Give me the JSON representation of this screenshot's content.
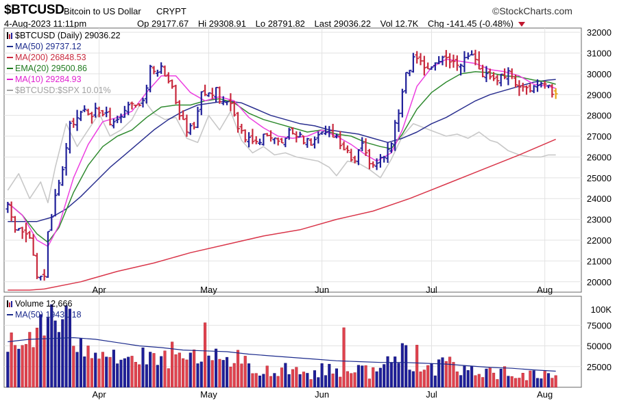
{
  "header": {
    "symbol": "$BTCUSD",
    "name": "Bitcoin to US Dollar",
    "exchange": "CRYPT",
    "brand": "©StockCharts.com",
    "datetime": "4-Aug-2023 11:11pm",
    "open_label": "Op",
    "open": "29177.67",
    "high_label": "Hi",
    "high": "29308.91",
    "low_label": "Lo",
    "low": "28791.82",
    "last_label": "Last",
    "last": "29036.22",
    "vol_label": "Vol",
    "vol": "12.7K",
    "chg_label": "Chg",
    "chg": "-141.45 (-0.48%)"
  },
  "legend": [
    {
      "text": "$BTCUSD (Daily) 29036.22",
      "color": "#000000",
      "marker": "bar"
    },
    {
      "text": "MA(50) 29737.12",
      "color": "#1b2a8c",
      "marker": "line"
    },
    {
      "text": "MA(200) 26848.53",
      "color": "#c8283c",
      "marker": "line"
    },
    {
      "text": "EMA(20) 29500.86",
      "color": "#1f7a1f",
      "marker": "line"
    },
    {
      "text": "MA(10) 29284.93",
      "color": "#e020d0",
      "marker": "line"
    },
    {
      "text": "$BTCUSD:$SPX 10.01%",
      "color": "#a0a0a0",
      "marker": "line"
    }
  ],
  "volume_legend": [
    {
      "text": "Volume 12,666",
      "color": "#000000",
      "marker": "bar"
    },
    {
      "text": "MA(50) 19431.18",
      "color": "#1b2a8c",
      "marker": "line"
    }
  ],
  "chart_data": {
    "type": "candlestick",
    "price_axis": {
      "ticks": [
        20000,
        21000,
        22000,
        23000,
        24000,
        25000,
        26000,
        27000,
        28000,
        29000,
        30000,
        31000,
        32000
      ],
      "range": [
        19500,
        32200
      ]
    },
    "volume_axis": {
      "ticks": [
        25000,
        50000,
        75000
      ],
      "top_label": "100K",
      "range": [
        0,
        110000
      ]
    },
    "month_labels": [
      {
        "label": "Apr",
        "day": 25
      },
      {
        "label": "May",
        "day": 55
      },
      {
        "label": "Jun",
        "day": 86
      },
      {
        "label": "Jul",
        "day": 116
      },
      {
        "label": "Aug",
        "day": 147
      }
    ],
    "day_count": 156,
    "x_range": [
      -1,
      157
    ],
    "ohlc_key": [
      [
        0,
        23500
      ],
      [
        2,
        22600
      ],
      [
        4,
        22400
      ],
      [
        6,
        22200
      ],
      [
        8,
        20100
      ],
      [
        10,
        20300
      ],
      [
        11,
        22300
      ],
      [
        13,
        24000
      ],
      [
        15,
        25400
      ],
      [
        17,
        27400
      ],
      [
        19,
        28000
      ],
      [
        21,
        28200
      ],
      [
        23,
        28100
      ],
      [
        25,
        28300
      ],
      [
        27,
        27900
      ],
      [
        29,
        27700
      ],
      [
        31,
        27900
      ],
      [
        33,
        28400
      ],
      [
        35,
        28300
      ],
      [
        37,
        28700
      ],
      [
        39,
        30200
      ],
      [
        41,
        30300
      ],
      [
        43,
        30100
      ],
      [
        45,
        29500
      ],
      [
        47,
        28200
      ],
      [
        49,
        27400
      ],
      [
        51,
        27500
      ],
      [
        53,
        29200
      ],
      [
        55,
        28900
      ],
      [
        57,
        29100
      ],
      [
        59,
        28500
      ],
      [
        61,
        28600
      ],
      [
        63,
        27600
      ],
      [
        65,
        27000
      ],
      [
        67,
        26900
      ],
      [
        69,
        26800
      ],
      [
        71,
        27200
      ],
      [
        73,
        26700
      ],
      [
        75,
        26900
      ],
      [
        77,
        27200
      ],
      [
        79,
        27100
      ],
      [
        81,
        26900
      ],
      [
        83,
        26800
      ],
      [
        85,
        27200
      ],
      [
        87,
        27200
      ],
      [
        89,
        27000
      ],
      [
        91,
        26800
      ],
      [
        93,
        26300
      ],
      [
        95,
        25800
      ],
      [
        97,
        26500
      ],
      [
        99,
        25900
      ],
      [
        101,
        25600
      ],
      [
        103,
        26200
      ],
      [
        105,
        26700
      ],
      [
        107,
        28300
      ],
      [
        109,
        30100
      ],
      [
        111,
        30600
      ],
      [
        113,
        30400
      ],
      [
        115,
        30300
      ],
      [
        117,
        30500
      ],
      [
        119,
        30800
      ],
      [
        121,
        30600
      ],
      [
        123,
        30300
      ],
      [
        125,
        30600
      ],
      [
        127,
        30900
      ],
      [
        129,
        30200
      ],
      [
        131,
        30000
      ],
      [
        133,
        29800
      ],
      [
        135,
        29800
      ],
      [
        137,
        29900
      ],
      [
        139,
        29700
      ],
      [
        141,
        29400
      ],
      [
        143,
        29300
      ],
      [
        145,
        29200
      ],
      [
        147,
        29400
      ],
      [
        149,
        29200
      ],
      [
        150,
        29050
      ]
    ],
    "ma50": [
      [
        0,
        22900
      ],
      [
        4,
        22900
      ],
      [
        8,
        22900
      ],
      [
        12,
        23100
      ],
      [
        16,
        23500
      ],
      [
        20,
        24100
      ],
      [
        24,
        24800
      ],
      [
        28,
        25500
      ],
      [
        32,
        26100
      ],
      [
        36,
        26700
      ],
      [
        40,
        27300
      ],
      [
        44,
        27800
      ],
      [
        48,
        28200
      ],
      [
        52,
        28500
      ],
      [
        56,
        28600
      ],
      [
        60,
        28700
      ],
      [
        64,
        28600
      ],
      [
        68,
        28300
      ],
      [
        72,
        28000
      ],
      [
        76,
        27800
      ],
      [
        80,
        27600
      ],
      [
        84,
        27500
      ],
      [
        88,
        27300
      ],
      [
        92,
        27200
      ],
      [
        96,
        27100
      ],
      [
        100,
        26900
      ],
      [
        104,
        26700
      ],
      [
        108,
        26900
      ],
      [
        112,
        27200
      ],
      [
        116,
        27600
      ],
      [
        120,
        27900
      ],
      [
        124,
        28300
      ],
      [
        128,
        28700
      ],
      [
        132,
        29000
      ],
      [
        136,
        29200
      ],
      [
        140,
        29400
      ],
      [
        144,
        29600
      ],
      [
        148,
        29700
      ],
      [
        150,
        29730
      ]
    ],
    "ma200": [
      [
        0,
        19600
      ],
      [
        6,
        19600
      ],
      [
        10,
        19650
      ],
      [
        20,
        20000
      ],
      [
        30,
        20500
      ],
      [
        40,
        20900
      ],
      [
        50,
        21400
      ],
      [
        60,
        21800
      ],
      [
        70,
        22200
      ],
      [
        80,
        22500
      ],
      [
        90,
        23000
      ],
      [
        100,
        23400
      ],
      [
        110,
        24000
      ],
      [
        120,
        24700
      ],
      [
        130,
        25400
      ],
      [
        140,
        26100
      ],
      [
        150,
        26850
      ]
    ],
    "ema20": [
      [
        0,
        23800
      ],
      [
        4,
        23200
      ],
      [
        8,
        22300
      ],
      [
        11,
        21900
      ],
      [
        14,
        22600
      ],
      [
        18,
        24300
      ],
      [
        22,
        25600
      ],
      [
        26,
        26500
      ],
      [
        30,
        27000
      ],
      [
        34,
        27300
      ],
      [
        38,
        27900
      ],
      [
        42,
        28400
      ],
      [
        46,
        28500
      ],
      [
        50,
        28500
      ],
      [
        54,
        28700
      ],
      [
        58,
        28800
      ],
      [
        62,
        28600
      ],
      [
        66,
        28100
      ],
      [
        70,
        27800
      ],
      [
        74,
        27600
      ],
      [
        78,
        27400
      ],
      [
        82,
        27200
      ],
      [
        86,
        27300
      ],
      [
        90,
        27100
      ],
      [
        94,
        27000
      ],
      [
        98,
        26700
      ],
      [
        102,
        26500
      ],
      [
        105,
        26400
      ],
      [
        108,
        27100
      ],
      [
        112,
        28300
      ],
      [
        116,
        29100
      ],
      [
        120,
        29600
      ],
      [
        124,
        30000
      ],
      [
        128,
        30100
      ],
      [
        132,
        30050
      ],
      [
        136,
        29900
      ],
      [
        140,
        29850
      ],
      [
        144,
        29700
      ],
      [
        148,
        29600
      ],
      [
        150,
        29500
      ]
    ],
    "ma10": [
      [
        0,
        23800
      ],
      [
        4,
        23200
      ],
      [
        8,
        22000
      ],
      [
        11,
        21700
      ],
      [
        14,
        22700
      ],
      [
        18,
        25000
      ],
      [
        22,
        26600
      ],
      [
        26,
        27700
      ],
      [
        30,
        27900
      ],
      [
        34,
        28200
      ],
      [
        38,
        29100
      ],
      [
        42,
        29900
      ],
      [
        46,
        29900
      ],
      [
        50,
        29100
      ],
      [
        54,
        28700
      ],
      [
        58,
        28900
      ],
      [
        62,
        28700
      ],
      [
        66,
        27900
      ],
      [
        70,
        27400
      ],
      [
        74,
        27000
      ],
      [
        78,
        26900
      ],
      [
        82,
        27000
      ],
      [
        86,
        27300
      ],
      [
        90,
        27000
      ],
      [
        94,
        26600
      ],
      [
        98,
        26100
      ],
      [
        101,
        25800
      ],
      [
        105,
        26200
      ],
      [
        108,
        27300
      ],
      [
        112,
        29400
      ],
      [
        116,
        30300
      ],
      [
        120,
        30700
      ],
      [
        124,
        30600
      ],
      [
        128,
        30500
      ],
      [
        132,
        30200
      ],
      [
        136,
        30100
      ],
      [
        140,
        29900
      ],
      [
        144,
        29500
      ],
      [
        148,
        29400
      ],
      [
        150,
        29300
      ]
    ],
    "ratio": [
      [
        0,
        24400
      ],
      [
        3,
        25200
      ],
      [
        6,
        24000
      ],
      [
        9,
        24800
      ],
      [
        11,
        23800
      ],
      [
        13,
        25500
      ],
      [
        16,
        27600
      ],
      [
        19,
        26500
      ],
      [
        22,
        27300
      ],
      [
        25,
        28100
      ],
      [
        28,
        27000
      ],
      [
        31,
        27300
      ],
      [
        34,
        27800
      ],
      [
        37,
        28800
      ],
      [
        40,
        28100
      ],
      [
        43,
        27800
      ],
      [
        46,
        27900
      ],
      [
        49,
        26900
      ],
      [
        52,
        26700
      ],
      [
        55,
        28000
      ],
      [
        58,
        27300
      ],
      [
        61,
        28200
      ],
      [
        64,
        26800
      ],
      [
        67,
        26200
      ],
      [
        70,
        26500
      ],
      [
        73,
        26100
      ],
      [
        76,
        26200
      ],
      [
        79,
        26000
      ],
      [
        82,
        25900
      ],
      [
        85,
        25800
      ],
      [
        88,
        25500
      ],
      [
        90,
        25100
      ],
      [
        93,
        25800
      ],
      [
        96,
        25700
      ],
      [
        99,
        25400
      ],
      [
        102,
        25000
      ],
      [
        105,
        25900
      ],
      [
        108,
        27000
      ],
      [
        111,
        27600
      ],
      [
        114,
        27400
      ],
      [
        117,
        27200
      ],
      [
        120,
        27000
      ],
      [
        123,
        27100
      ],
      [
        126,
        26900
      ],
      [
        129,
        27200
      ],
      [
        132,
        26800
      ],
      [
        134,
        26700
      ],
      [
        137,
        26300
      ],
      [
        140,
        26100
      ],
      [
        143,
        26000
      ],
      [
        146,
        26000
      ],
      [
        148,
        26100
      ],
      [
        150,
        26100
      ]
    ],
    "volume_key": [
      [
        0,
        52000
      ],
      [
        3,
        44000
      ],
      [
        6,
        60000
      ],
      [
        9,
        86000
      ],
      [
        12,
        88000
      ],
      [
        15,
        74000
      ],
      [
        18,
        66000
      ],
      [
        21,
        58000
      ],
      [
        24,
        52000
      ],
      [
        27,
        46000
      ],
      [
        30,
        40000
      ],
      [
        33,
        32000
      ],
      [
        36,
        36000
      ],
      [
        39,
        30000
      ],
      [
        42,
        33000
      ],
      [
        45,
        38000
      ],
      [
        48,
        26000
      ],
      [
        51,
        36000
      ],
      [
        54,
        24000
      ],
      [
        57,
        32000
      ],
      [
        60,
        28000
      ],
      [
        63,
        35000
      ],
      [
        66,
        22000
      ],
      [
        69,
        18000
      ],
      [
        72,
        20000
      ],
      [
        75,
        26000
      ],
      [
        78,
        22000
      ],
      [
        81,
        18000
      ],
      [
        84,
        16000
      ],
      [
        87,
        22000
      ],
      [
        90,
        20000
      ],
      [
        93,
        24000
      ],
      [
        96,
        22000
      ],
      [
        99,
        18000
      ],
      [
        102,
        24000
      ],
      [
        105,
        30000
      ],
      [
        108,
        45000
      ],
      [
        111,
        32000
      ],
      [
        114,
        24000
      ],
      [
        117,
        22000
      ],
      [
        120,
        28000
      ],
      [
        123,
        20000
      ],
      [
        126,
        18000
      ],
      [
        129,
        22000
      ],
      [
        132,
        18000
      ],
      [
        135,
        16000
      ],
      [
        138,
        20000
      ],
      [
        141,
        14000
      ],
      [
        144,
        15000
      ],
      [
        147,
        18000
      ],
      [
        150,
        13000
      ]
    ],
    "volume_spikes": [
      [
        9,
        88000
      ],
      [
        11,
        84000
      ],
      [
        15,
        82000
      ],
      [
        54,
        78000
      ],
      [
        92,
        72000
      ],
      [
        108,
        53000
      ],
      [
        112,
        51000
      ]
    ],
    "vol_ma50": [
      [
        0,
        55000
      ],
      [
        6,
        58000
      ],
      [
        12,
        59000
      ],
      [
        18,
        60000
      ],
      [
        24,
        58000
      ],
      [
        30,
        54000
      ],
      [
        36,
        50000
      ],
      [
        42,
        48000
      ],
      [
        48,
        45000
      ],
      [
        54,
        44000
      ],
      [
        60,
        43000
      ],
      [
        66,
        40000
      ],
      [
        72,
        38000
      ],
      [
        78,
        36000
      ],
      [
        84,
        34000
      ],
      [
        90,
        32000
      ],
      [
        96,
        31000
      ],
      [
        102,
        30000
      ],
      [
        108,
        30000
      ],
      [
        114,
        29000
      ],
      [
        120,
        28000
      ],
      [
        126,
        26000
      ],
      [
        132,
        24000
      ],
      [
        138,
        23000
      ],
      [
        144,
        21000
      ],
      [
        150,
        19431
      ]
    ]
  }
}
